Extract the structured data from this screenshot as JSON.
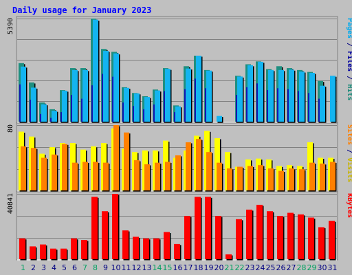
{
  "chart_data": {
    "type": "bar",
    "title": "Daily usage for January 2023",
    "categories": [
      "1",
      "2",
      "3",
      "4",
      "5",
      "6",
      "7",
      "8",
      "9",
      "10",
      "11",
      "12",
      "13",
      "14",
      "15",
      "16",
      "17",
      "18",
      "19",
      "20",
      "21",
      "22",
      "23",
      "24",
      "25",
      "26",
      "27",
      "28",
      "29",
      "30",
      "31"
    ],
    "weekend_days": [
      "1",
      "7",
      "8",
      "14",
      "15",
      "21",
      "22",
      "28",
      "29"
    ],
    "panels": [
      {
        "id": "hits_panel",
        "max_label": "5390",
        "ylim": [
          0,
          5390
        ],
        "right_labels": [
          {
            "text": "Hits",
            "color": "#1a8a7a"
          },
          {
            "text": " / ",
            "color": "#000080"
          },
          {
            "text": "Files",
            "color": "#0000a0"
          },
          {
            "text": " / ",
            "color": "#000080"
          },
          {
            "text": "Pages",
            "color": "#00aaee"
          }
        ],
        "series": [
          {
            "name": "Hits",
            "color": "#1e8f80",
            "values": [
              3060,
              2050,
              1000,
              650,
              1650,
              2800,
              2800,
              5390,
              3800,
              3650,
              1800,
              1500,
              1330,
              1680,
              2800,
              850,
              2900,
              3450,
              2700,
              0,
              0,
              2400,
              3000,
              3150,
              2750,
              2900,
              2800,
              2700,
              2600,
              2130,
              0
            ]
          },
          {
            "name": "Files",
            "color": "#1515b0",
            "values": [
              1950,
              1150,
              400,
              200,
              500,
              1400,
              1200,
              1900,
              2500,
              2350,
              1000,
              820,
              650,
              900,
              1600,
              500,
              1700,
              2250,
              1750,
              0,
              0,
              1400,
              1800,
              2000,
              1650,
              1750,
              1700,
              1600,
              1500,
              1200,
              0
            ]
          },
          {
            "name": "Pages",
            "color": "#14b4f0",
            "values": [
              2880,
              1780,
              910,
              570,
              1620,
              2700,
              2700,
              5330,
              3700,
              3570,
              1770,
              1480,
              1290,
              1630,
              2760,
              800,
              2780,
              3450,
              2670,
              300,
              0,
              2360,
              2950,
              3130,
              2700,
              2700,
              2720,
              2620,
              2550,
              1880,
              2400
            ]
          }
        ]
      },
      {
        "id": "visits_panel",
        "max_label": "80",
        "ylim": [
          0,
          80
        ],
        "right_labels": [
          {
            "text": "Visits",
            "color": "#c8b400"
          },
          {
            "text": " / ",
            "color": "#000080"
          },
          {
            "text": "Sites",
            "color": "#ff8000"
          }
        ],
        "series": [
          {
            "name": "Visits",
            "color": "#ffff00",
            "values": [
              72,
              66,
              45,
              53,
              58,
              58,
              50,
              54,
              58,
              76,
              51,
              47,
              49,
              49,
              61,
              40,
              49,
              67,
              73,
              64,
              47,
              29,
              38,
              39,
              38,
              30,
              31,
              30,
              59,
              40,
              40
            ]
          },
          {
            "name": "Sites",
            "color": "#ff8000",
            "values": [
              54,
              52,
              40,
              44,
              57,
              34,
              35,
              35,
              34,
              80,
              71,
              37,
              32,
              34,
              35,
              43,
              59,
              63,
              47,
              34,
              27,
              29,
              30,
              31,
              27,
              24,
              27,
              26,
              34,
              33,
              35
            ]
          }
        ]
      },
      {
        "id": "kbytes_panel",
        "max_label": "40841",
        "ylim": [
          0,
          40841
        ],
        "right_labels": [
          {
            "text": "KBytes",
            "color": "#ff0000"
          }
        ],
        "series": [
          {
            "name": "KBytes",
            "color": "#ff0000",
            "values": [
              13000,
              8000,
              9200,
              6600,
              6600,
              13000,
              12000,
              39000,
              30000,
              40841,
              18000,
              14000,
              13000,
              13000,
              17000,
              9500,
              27000,
              39000,
              39000,
              27000,
              3000,
              25000,
              31000,
              34000,
              30000,
              27000,
              29000,
              28000,
              26000,
              20000,
              24000
            ]
          }
        ]
      }
    ]
  }
}
